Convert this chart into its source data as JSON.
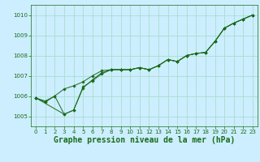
{
  "title": "Graphe pression niveau de la mer (hPa)",
  "bg_color": "#cceeff",
  "grid_color": "#aaddcc",
  "line_color": "#1a6b1a",
  "xlim": [
    -0.5,
    23.5
  ],
  "ylim": [
    1004.5,
    1010.5
  ],
  "xticks": [
    0,
    1,
    2,
    3,
    4,
    5,
    6,
    7,
    8,
    9,
    10,
    11,
    12,
    13,
    14,
    15,
    16,
    17,
    18,
    19,
    20,
    21,
    22,
    23
  ],
  "yticks": [
    1005,
    1006,
    1007,
    1008,
    1009,
    1010
  ],
  "series1_x": [
    0,
    1,
    2,
    3,
    4,
    5,
    6,
    7,
    8,
    9,
    10,
    11,
    12,
    13,
    14,
    15,
    16,
    17,
    18,
    19,
    20,
    21,
    22,
    23
  ],
  "series1_y": [
    1005.9,
    1005.7,
    1006.0,
    1005.1,
    1005.3,
    1006.4,
    1006.8,
    1007.15,
    1007.3,
    1007.3,
    1007.3,
    1007.4,
    1007.3,
    1007.5,
    1007.8,
    1007.7,
    1008.0,
    1008.1,
    1008.15,
    1008.7,
    1009.35,
    1009.6,
    1009.8,
    1010.0
  ],
  "series2_x": [
    0,
    1,
    2,
    3,
    4,
    5,
    6,
    7,
    8,
    9,
    10,
    11,
    12,
    13,
    14,
    15,
    16,
    17,
    18,
    19,
    20,
    21,
    22,
    23
  ],
  "series2_y": [
    1005.9,
    1005.75,
    1006.0,
    1006.35,
    1006.5,
    1006.7,
    1007.0,
    1007.25,
    1007.3,
    1007.3,
    1007.3,
    1007.4,
    1007.3,
    1007.5,
    1007.8,
    1007.7,
    1008.0,
    1008.1,
    1008.15,
    1008.7,
    1009.35,
    1009.6,
    1009.8,
    1010.0
  ],
  "series3_x": [
    0,
    3,
    4,
    5,
    6,
    7,
    8,
    9,
    10,
    11,
    12,
    13,
    14,
    15,
    16,
    17,
    18,
    19,
    20,
    21,
    22,
    23
  ],
  "series3_y": [
    1005.9,
    1005.1,
    1005.3,
    1006.45,
    1006.75,
    1007.1,
    1007.3,
    1007.3,
    1007.3,
    1007.4,
    1007.3,
    1007.5,
    1007.8,
    1007.7,
    1008.0,
    1008.1,
    1008.15,
    1008.7,
    1009.35,
    1009.6,
    1009.8,
    1010.0
  ],
  "title_fontsize": 7,
  "tick_fontsize": 5
}
